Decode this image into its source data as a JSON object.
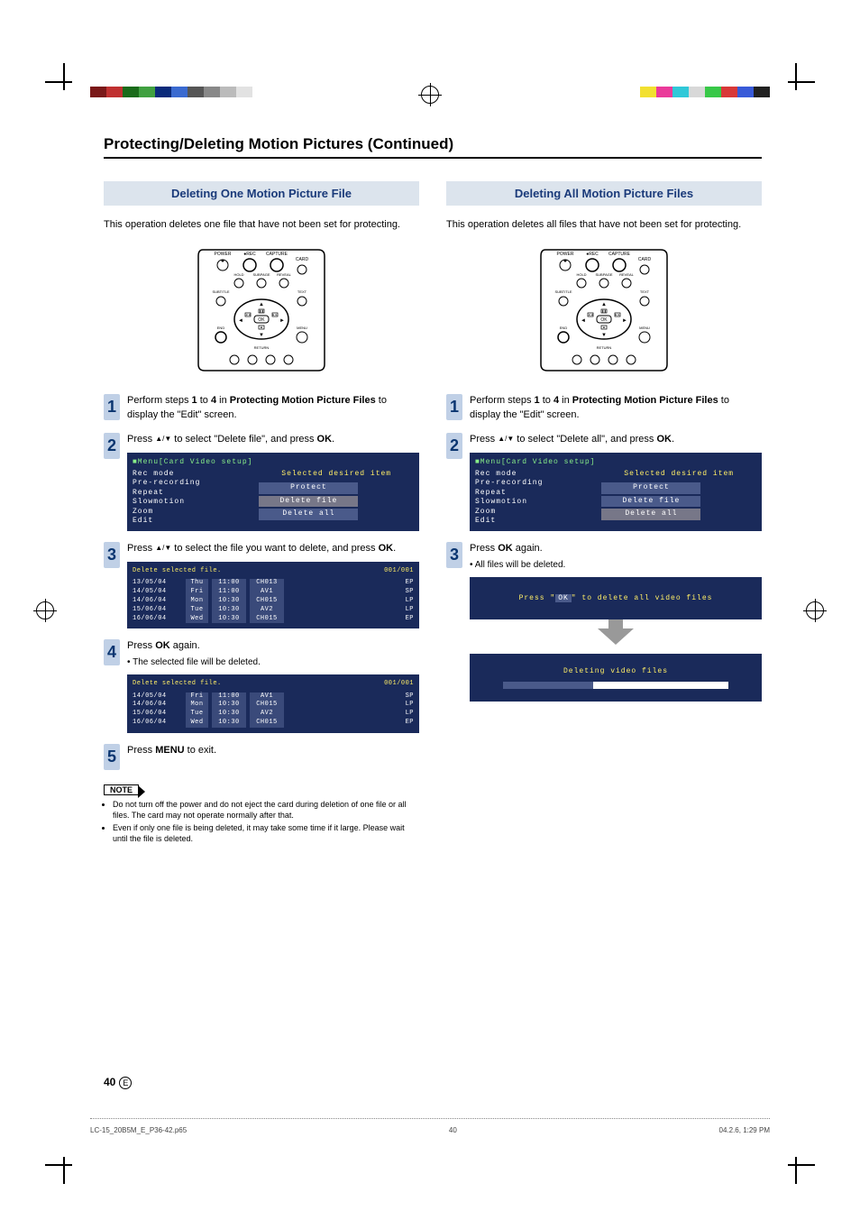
{
  "print": {
    "color_bar_left": [
      "#7a1818",
      "#c03030",
      "#1a6b1a",
      "#40a040",
      "#0a2a7a",
      "#3a6ad0",
      "#555",
      "#888",
      "#bbb",
      "#e2e2e2"
    ],
    "color_bar_right": [
      "#f2e030",
      "#ea3a9a",
      "#30c8d8",
      "#d8d8d8",
      "#38c848",
      "#d83838",
      "#385ad8",
      "#202020"
    ],
    "footer_file": "LC-15_20B5M_E_P36-42.p65",
    "footer_page": "40",
    "footer_date": "04.2.6, 1:29 PM",
    "crop_mark_color": "#000000",
    "registration_color": "#000000"
  },
  "colors": {
    "section_bg": "#dce4ed",
    "section_text": "#1a3a7a",
    "step_bg": "#c0d0e6",
    "step_text": "#0a3570",
    "osd_bg": "#1a2a5a",
    "osd_title": "#88ee88",
    "osd_hint": "#ffee66",
    "osd_btn": "#4a5a8a"
  },
  "title": "Protecting/Deleting Motion Pictures (Continued)",
  "left": {
    "header": "Deleting One Motion Picture File",
    "intro": "This operation deletes one file that have not been set for protecting.",
    "step1": {
      "num": "1",
      "text_a": "Perform steps ",
      "b1": "1",
      "text_b": " to ",
      "b2": "4",
      "text_c": " in ",
      "b3": "Protecting Motion Picture Files",
      "text_d": " to display the \"Edit\" screen."
    },
    "step2": {
      "num": "2",
      "text_a": "Press ",
      "sym": "▲/▼",
      "text_b": " to select \"Delete file\", and press ",
      "b1": "OK",
      "text_c": "."
    },
    "osd2": {
      "menu_path": "■Menu[Card Video setup]",
      "hint": "Selected desired item",
      "items": [
        "Rec mode",
        "Pre-recording",
        "Repeat",
        "Slowmotion",
        "Zoom",
        "Edit"
      ],
      "buttons": [
        "Protect",
        "Delete file",
        "Delete all"
      ],
      "selected_button": 1
    },
    "step3": {
      "num": "3",
      "text_a": "Press ",
      "sym": "▲/▼",
      "text_b": " to select the file you want to delete, and press ",
      "b1": "OK",
      "text_c": "."
    },
    "osd3": {
      "title": "Delete selected file.",
      "counter": "001/001",
      "rows": [
        {
          "d": "13/05/04",
          "w": "Thu",
          "t": "11:00",
          "c": "CH013",
          "m": "EP"
        },
        {
          "d": "14/05/04",
          "w": "Fri",
          "t": "11:00",
          "c": "AV1",
          "m": "SP"
        },
        {
          "d": "14/06/04",
          "w": "Mon",
          "t": "10:30",
          "c": "CH015",
          "m": "LP"
        },
        {
          "d": "15/06/04",
          "w": "Tue",
          "t": "10:30",
          "c": "AV2",
          "m": "LP"
        },
        {
          "d": "16/06/04",
          "w": "Wed",
          "t": "10:30",
          "c": "CH015",
          "m": "EP"
        }
      ]
    },
    "step4": {
      "num": "4",
      "text_a": "Press ",
      "b1": "OK",
      "text_b": " again.",
      "sub": "• The selected file will be deleted."
    },
    "osd4": {
      "title": "Delete selected file.",
      "counter": "001/001",
      "rows": [
        {
          "d": "14/05/04",
          "w": "Fri",
          "t": "11:00",
          "c": "AV1",
          "m": "SP"
        },
        {
          "d": "14/06/04",
          "w": "Mon",
          "t": "10:30",
          "c": "CH015",
          "m": "LP"
        },
        {
          "d": "15/06/04",
          "w": "Tue",
          "t": "10:30",
          "c": "AV2",
          "m": "LP"
        },
        {
          "d": "16/06/04",
          "w": "Wed",
          "t": "10:30",
          "c": "CH015",
          "m": "EP"
        }
      ]
    },
    "step5": {
      "num": "5",
      "text_a": "Press ",
      "b1": "MENU",
      "text_b": " to exit."
    },
    "note_label": "NOTE",
    "notes": [
      "Do not turn off the power and do not eject the card during deletion of one file or all files. The card may not operate normally after that.",
      "Even if only one file is being deleted, it may take some time if it large. Please wait until the file is deleted."
    ]
  },
  "right": {
    "header": "Deleting All Motion Picture Files",
    "intro": "This operation deletes all files that have not been set for protecting.",
    "step1": {
      "num": "1",
      "text_a": "Perform steps ",
      "b1": "1",
      "text_b": " to ",
      "b2": "4",
      "text_c": " in ",
      "b3": "Protecting Motion Picture Files",
      "text_d": " to display the \"Edit\" screen."
    },
    "step2": {
      "num": "2",
      "text_a": "Press ",
      "sym": "▲/▼",
      "text_b": " to select \"Delete all\", and press ",
      "b1": "OK",
      "text_c": "."
    },
    "osd2": {
      "menu_path": "■Menu[Card Video setup]",
      "hint": "Selected desired item",
      "items": [
        "Rec mode",
        "Pre-recording",
        "Repeat",
        "Slowmotion",
        "Zoom",
        "Edit"
      ],
      "buttons": [
        "Protect",
        "Delete file",
        "Delete all"
      ],
      "selected_button": 2
    },
    "step3": {
      "num": "3",
      "text_a": "Press ",
      "b1": "OK",
      "text_b": " again.",
      "sub": "• All files will be deleted."
    },
    "osd_confirm_a": "Press \"",
    "osd_confirm_ok": "OK",
    "osd_confirm_b": "\" to delete all video files",
    "osd_progress": "Deleting video files"
  },
  "remote": {
    "labels_top": [
      "POWER",
      "●REC",
      "CAPTURE",
      "CARD"
    ],
    "labels_mid": [
      "HOLD",
      "SUBPAGE",
      "REVEAL"
    ],
    "labels_side": [
      "SUBTITLE",
      "TEXT"
    ],
    "labels_bot": [
      "END",
      "MENU"
    ],
    "return": "RETURN",
    "ok": "OK"
  },
  "page_number": "40",
  "page_lang": "E"
}
